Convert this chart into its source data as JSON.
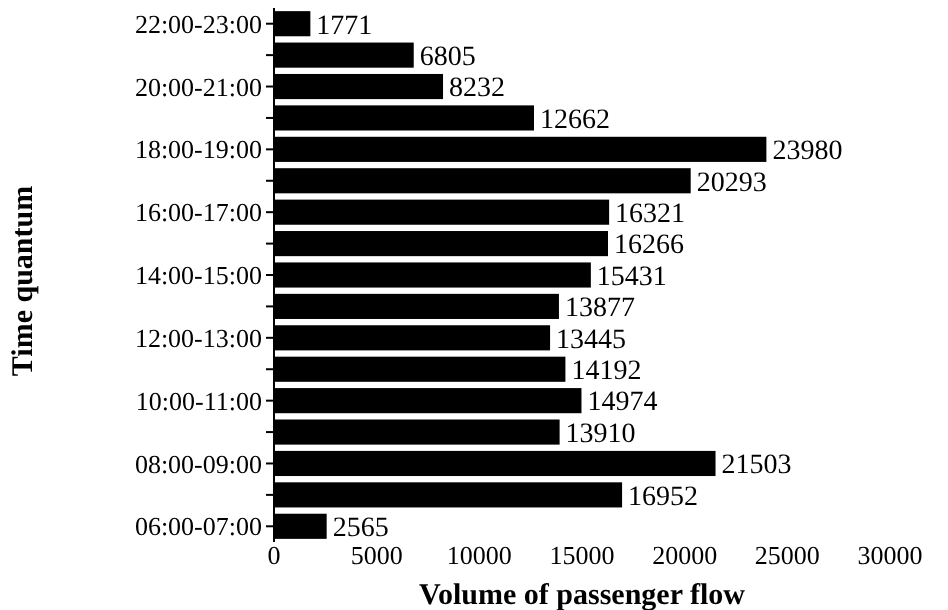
{
  "chart_data": {
    "type": "bar",
    "orientation": "horizontal",
    "xlabel": "Volume of passenger flow",
    "ylabel": "Time quantum",
    "categories": [
      "22:00-23:00",
      null,
      "20:00-21:00",
      null,
      "18:00-19:00",
      null,
      "16:00-17:00",
      null,
      "14:00-15:00",
      null,
      "12:00-13:00",
      null,
      "10:00-11:00",
      null,
      "08:00-09:00",
      null,
      "06:00-07:00"
    ],
    "values": [
      1771,
      6805,
      8232,
      12662,
      23980,
      20293,
      16321,
      16266,
      15431,
      13877,
      13445,
      14192,
      14974,
      13910,
      21503,
      16952,
      2565
    ],
    "color": "#000000",
    "xlim": [
      0,
      30000
    ],
    "xticks": [
      0,
      5000,
      10000,
      15000,
      20000,
      25000,
      30000
    ],
    "data_labels": true
  }
}
